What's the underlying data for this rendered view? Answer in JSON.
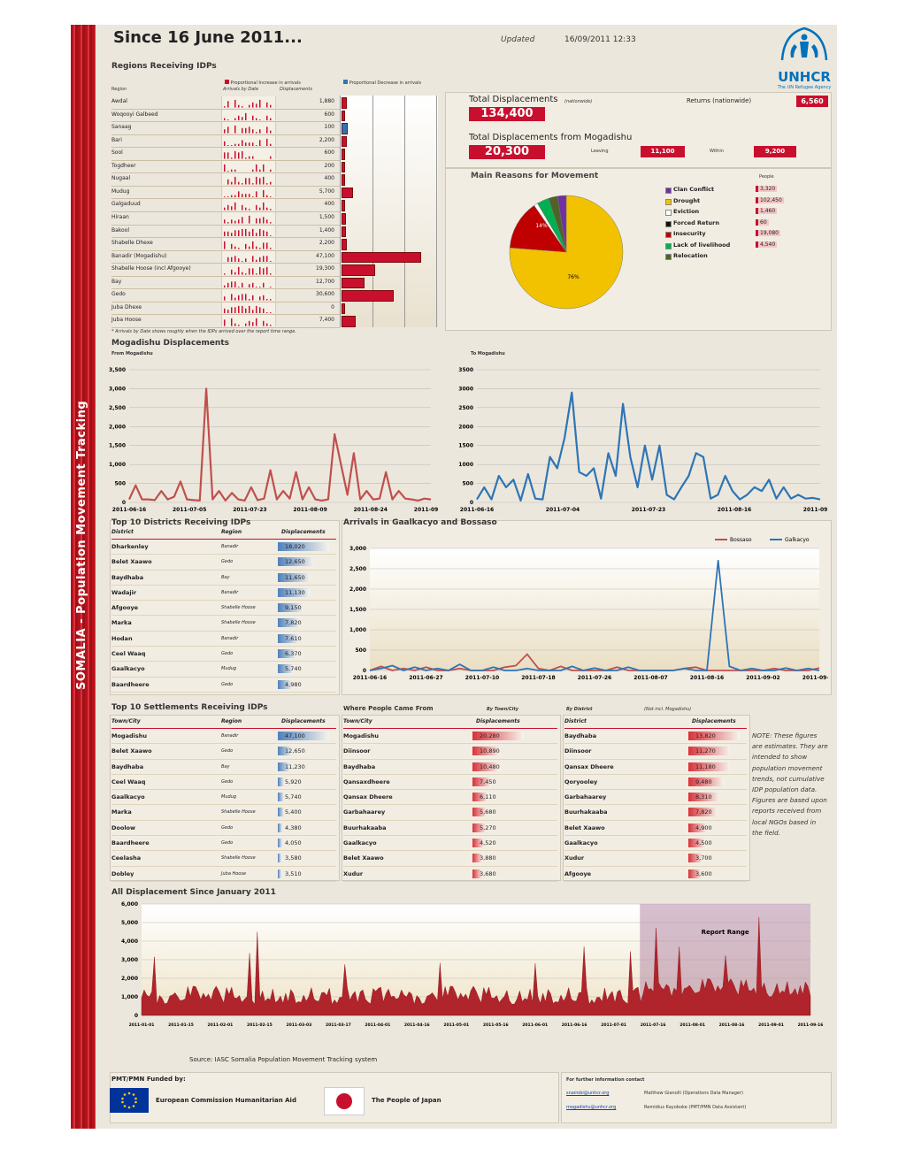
{
  "side_label": "SOMALIA - Population Movement Tracking",
  "header": {
    "title": "Since 16 June 2011...",
    "updated_label": "Updated",
    "updated_value": "16/09/2011 12:33"
  },
  "logo": {
    "name": "UNHCR",
    "sub": "The UN Refugee Agency"
  },
  "regions": {
    "title": "Regions Receiving IDPs",
    "legend_increase": "Proportional Increase in arrivals",
    "legend_decrease": "Proportional Decrease in arrivals",
    "col_region": "Region",
    "col_arrivals": "Arrivals by Date",
    "col_disp": "Displacements",
    "footnote": "* Arrivals by Date shows roughly when the IDPs arrived over the report time range.",
    "rows": [
      {
        "name": "Awdal",
        "value": "1,880",
        "v": 1880
      },
      {
        "name": "Woqooyi Galbeed",
        "value": "600",
        "v": 600
      },
      {
        "name": "Sanaag",
        "value": "100",
        "v": 100
      },
      {
        "name": "Bari",
        "value": "2,200",
        "v": 2200
      },
      {
        "name": "Sool",
        "value": "600",
        "v": 600
      },
      {
        "name": "Togdheer",
        "value": "200",
        "v": 200
      },
      {
        "name": "Nugaal",
        "value": "400",
        "v": 400
      },
      {
        "name": "Mudug",
        "value": "5,700",
        "v": 5700
      },
      {
        "name": "Galgaduud",
        "value": "400",
        "v": 400
      },
      {
        "name": "Hiraan",
        "value": "1,500",
        "v": 1500
      },
      {
        "name": "Bakool",
        "value": "1,400",
        "v": 1400
      },
      {
        "name": "Shabelle Dhexe",
        "value": "2,200",
        "v": 2200
      },
      {
        "name": "Banadir (Mogadishu)",
        "value": "47,100",
        "v": 47100
      },
      {
        "name": "Shabelle Hoose (incl Afgooye)",
        "value": "19,300",
        "v": 19300
      },
      {
        "name": "Bay",
        "value": "12,700",
        "v": 12700
      },
      {
        "name": "Gedo",
        "value": "30,600",
        "v": 30600
      },
      {
        "name": "Juba Dhexe",
        "value": "0",
        "v": 0
      },
      {
        "name": "Juba Hoose",
        "value": "7,400",
        "v": 7400
      }
    ]
  },
  "totals": {
    "total_label": "Total Displacements",
    "nationwide": "(nationwide)",
    "total_value": "134,400",
    "returns_label": "Returns (nationwide)",
    "returns_value": "6,560",
    "mog_label": "Total Displacements from Mogadishu",
    "mog_value": "20,300",
    "leaving_label": "Leaving",
    "leaving_value": "11,100",
    "within_label": "Within",
    "within_value": "9,200"
  },
  "reasons": {
    "title": "Main Reasons for Movement",
    "people_label": "People",
    "items": [
      {
        "label": "Clan Conflict",
        "value": "3,320",
        "color": "#7030a0",
        "n": 3320
      },
      {
        "label": "Drought",
        "value": "102,450",
        "color": "#f2c200",
        "n": 102450
      },
      {
        "label": "Eviction",
        "value": "1,460",
        "color": "#ffffff",
        "n": 1460
      },
      {
        "label": "Forced Return",
        "value": "60",
        "color": "#111111",
        "n": 60
      },
      {
        "label": "Insecurity",
        "value": "19,080",
        "color": "#c00000",
        "n": 19080
      },
      {
        "label": "Lack of livelihood",
        "value": "4,540",
        "color": "#00b050",
        "n": 4540
      },
      {
        "label": "Relocation",
        "value": "",
        "color": "#4f6228",
        "n": 3500
      }
    ],
    "pct_drought": "76%",
    "pct_insecurity": "14%"
  },
  "mog_disp": {
    "title": "Mogadishu Displacements",
    "from_label": "From Mogadishu",
    "to_label": "To Mogadishu"
  },
  "chart_data": [
    {
      "type": "line",
      "title": "From Mogadishu",
      "yticks": [
        "0",
        "500",
        "1,000",
        "1,500",
        "2,000",
        "2,500",
        "3,000",
        "3,500"
      ],
      "xticks": [
        "2011-06-16",
        "2011-07-05",
        "2011-07-23",
        "2011-08-09",
        "2011-08-24",
        "2011-09-10"
      ],
      "ylim": [
        0,
        3500
      ],
      "series": [
        {
          "color": "#c0504d",
          "values": [
            80,
            450,
            80,
            80,
            60,
            300,
            80,
            150,
            550,
            80,
            60,
            50,
            3000,
            80,
            300,
            50,
            250,
            80,
            50,
            400,
            60,
            100,
            850,
            80,
            300,
            100,
            800,
            80,
            400,
            80,
            50,
            80,
            1800,
            1000,
            200,
            1300,
            80,
            300,
            80,
            100,
            800,
            80,
            300,
            100,
            80,
            50,
            100,
            80
          ]
        }
      ]
    },
    {
      "type": "line",
      "title": "To Mogadishu",
      "yticks": [
        "0",
        "500",
        "1000",
        "1500",
        "2000",
        "2500",
        "3000",
        "3500"
      ],
      "xticks": [
        "2011-06-16",
        "2011-07-04",
        "2011-07-23",
        "2011-08-16",
        "2011-09-11"
      ],
      "ylim": [
        0,
        3500
      ],
      "series": [
        {
          "color": "#2e75b6",
          "values": [
            80,
            400,
            80,
            700,
            400,
            600,
            50,
            750,
            100,
            80,
            1200,
            900,
            1700,
            2900,
            800,
            700,
            900,
            100,
            1300,
            700,
            2600,
            1200,
            400,
            1500,
            600,
            1500,
            200,
            80,
            400,
            700,
            1300,
            1200,
            100,
            200,
            700,
            300,
            80,
            200,
            400,
            300,
            600,
            100,
            400,
            100,
            200,
            100,
            120,
            80
          ]
        }
      ]
    },
    {
      "type": "line",
      "title": "Arrivals in Gaalkacyo and Bossaso",
      "yticks": [
        "0",
        "500",
        "1,000",
        "1,500",
        "2,000",
        "2,500",
        "3,000"
      ],
      "xticks": [
        "2011-06-16",
        "2011-06-27",
        "2011-07-10",
        "2011-07-18",
        "2011-07-26",
        "2011-08-07",
        "2011-08-16",
        "2011-09-02",
        "2011-09-11"
      ],
      "ylim": [
        0,
        3000
      ],
      "series": [
        {
          "name": "Bossaso",
          "color": "#c0504d",
          "values": [
            0,
            100,
            0,
            50,
            0,
            80,
            0,
            0,
            50,
            0,
            0,
            0,
            80,
            120,
            400,
            50,
            0,
            100,
            0,
            0,
            0,
            0,
            80,
            0,
            0,
            0,
            0,
            0,
            50,
            80,
            0,
            0,
            0,
            0,
            0,
            0,
            50,
            0,
            0,
            0,
            60
          ]
        },
        {
          "name": "Galkacyo",
          "color": "#2e75b6",
          "values": [
            0,
            50,
            120,
            0,
            80,
            0,
            50,
            0,
            150,
            0,
            0,
            80,
            0,
            0,
            50,
            0,
            0,
            0,
            100,
            0,
            60,
            0,
            0,
            80,
            0,
            0,
            0,
            0,
            50,
            0,
            0,
            2700,
            100,
            0,
            50,
            0,
            0,
            60,
            0,
            50,
            0
          ]
        }
      ]
    },
    {
      "type": "area",
      "title": "All Displacement Since January 2011",
      "yticks": [
        "0",
        "1,000",
        "2,000",
        "3,000",
        "4,000",
        "5,000",
        "6,000"
      ],
      "xticks": [
        "2011-01-01",
        "2011-01-15",
        "2011-02-01",
        "2011-02-15",
        "2011-03-03",
        "2011-03-17",
        "2011-04-01",
        "2011-04-16",
        "2011-05-01",
        "2011-05-16",
        "2011-06-01",
        "2011-06-16",
        "2011-07-01",
        "2011-07-16",
        "2011-08-01",
        "2011-08-16",
        "2011-09-01",
        "2011-09-16"
      ],
      "ylim": [
        0,
        6000
      ],
      "annotation": "Report Range"
    }
  ],
  "top_districts": {
    "title": "Top 10 Districts Receiving IDPs",
    "cols": [
      "District",
      "Region",
      "Displacements"
    ],
    "rows": [
      {
        "d": "Dharkenley",
        "r": "Banadir",
        "v": "18,020",
        "n": 18020
      },
      {
        "d": "Belet Xaawo",
        "r": "Gedo",
        "v": "12,650",
        "n": 12650
      },
      {
        "d": "Baydhaba",
        "r": "Bay",
        "v": "11,650",
        "n": 11650
      },
      {
        "d": "Wadajir",
        "r": "Banadir",
        "v": "11,130",
        "n": 11130
      },
      {
        "d": "Afgooye",
        "r": "Shabelle Hoose",
        "v": "9,150",
        "n": 9150
      },
      {
        "d": "Marka",
        "r": "Shabelle Hoose",
        "v": "7,820",
        "n": 7820
      },
      {
        "d": "Hodan",
        "r": "Banadir",
        "v": "7,610",
        "n": 7610
      },
      {
        "d": "Ceel Waaq",
        "r": "Gedo",
        "v": "6,370",
        "n": 6370
      },
      {
        "d": "Gaalkacyo",
        "r": "Mudug",
        "v": "5,740",
        "n": 5740
      },
      {
        "d": "Baardheere",
        "r": "Gedo",
        "v": "4,980",
        "n": 4980
      }
    ]
  },
  "top_settlements": {
    "title": "Top 10 Settlements Receiving IDPs",
    "cols": [
      "Town/City",
      "Region",
      "Displacements"
    ],
    "rows": [
      {
        "d": "Mogadishu",
        "r": "Banadir",
        "v": "47,100",
        "n": 47100
      },
      {
        "d": "Belet Xaawo",
        "r": "Gedo",
        "v": "12,650",
        "n": 12650
      },
      {
        "d": "Baydhaba",
        "r": "Bay",
        "v": "11,230",
        "n": 11230
      },
      {
        "d": "Ceel Waaq",
        "r": "Gedo",
        "v": "5,920",
        "n": 5920
      },
      {
        "d": "Gaalkacyo",
        "r": "Mudug",
        "v": "5,740",
        "n": 5740
      },
      {
        "d": "Marka",
        "r": "Shabelle Hoose",
        "v": "5,400",
        "n": 5400
      },
      {
        "d": "Doolow",
        "r": "Gedo",
        "v": "4,380",
        "n": 4380
      },
      {
        "d": "Baardheere",
        "r": "Gedo",
        "v": "4,050",
        "n": 4050
      },
      {
        "d": "Ceelasha",
        "r": "Shabelle Hoose",
        "v": "3,580",
        "n": 3580
      },
      {
        "d": "Dobley",
        "r": "Juba Hoose",
        "v": "3,510",
        "n": 3510
      }
    ]
  },
  "where_from": {
    "title": "Where People Came From",
    "by_town": "By Town/City",
    "cols": [
      "Town/City",
      "Displacements"
    ],
    "rows": [
      {
        "d": "Mogadishu",
        "v": "20,280",
        "n": 20280
      },
      {
        "d": "Diinsoor",
        "v": "10,890",
        "n": 10890
      },
      {
        "d": "Baydhaba",
        "v": "10,480",
        "n": 10480
      },
      {
        "d": "Qansaxdheere",
        "v": "7,450",
        "n": 7450
      },
      {
        "d": "Qansax Dheere",
        "v": "6,110",
        "n": 6110
      },
      {
        "d": "Garbahaarey",
        "v": "5,680",
        "n": 5680
      },
      {
        "d": "Buurhakaaba",
        "v": "5,270",
        "n": 5270
      },
      {
        "d": "Gaalkacyo",
        "v": "4,520",
        "n": 4520
      },
      {
        "d": "Belet Xaawo",
        "v": "3,880",
        "n": 3880
      },
      {
        "d": "Xudur",
        "v": "3,680",
        "n": 3680
      }
    ]
  },
  "by_district": {
    "title": "By District",
    "note": "(Not incl. Mogadishu)",
    "cols": [
      "District",
      "Displacements"
    ],
    "rows": [
      {
        "d": "Baydhaba",
        "v": "13,820",
        "n": 13820
      },
      {
        "d": "Diinsoor",
        "v": "11,270",
        "n": 11270
      },
      {
        "d": "Qansax Dheere",
        "v": "11,180",
        "n": 11180
      },
      {
        "d": "Qoryooley",
        "v": "9,480",
        "n": 9480
      },
      {
        "d": "Garbahaarey",
        "v": "8,310",
        "n": 8310
      },
      {
        "d": "Buurhakaaba",
        "v": "7,820",
        "n": 7820
      },
      {
        "d": "Belet Xaawo",
        "v": "4,900",
        "n": 4900
      },
      {
        "d": "Gaalkacyo",
        "v": "4,500",
        "n": 4500
      },
      {
        "d": "Xudur",
        "v": "3,700",
        "n": 3700
      },
      {
        "d": "Afgooye",
        "v": "3,600",
        "n": 3600
      }
    ]
  },
  "note_text": "NOTE: These figures are estimates. They are intended to show population movement trends, not cumulative IDP population data. Figures are based upon reports received from local NGOs based in the field.",
  "all_disp_title": "All Displacement Since January 2011",
  "source": "Source: IASC Somalia Population Movement Tracking system",
  "footer": {
    "funded_label": "PMT/PMN Funded by:",
    "eu": "European Commission Humanitarian Aid",
    "japan": "The People of Japan",
    "contact_label": "For further information contact",
    "contacts": [
      {
        "email": "snairobi@unhcr.org",
        "name": "Matthew Gianolli (Operations Data Manager)"
      },
      {
        "email": "mogadishu@unhcr.org",
        "name": "Remidius Kayoboke (PMT/PMN Data Assistant)"
      }
    ]
  }
}
